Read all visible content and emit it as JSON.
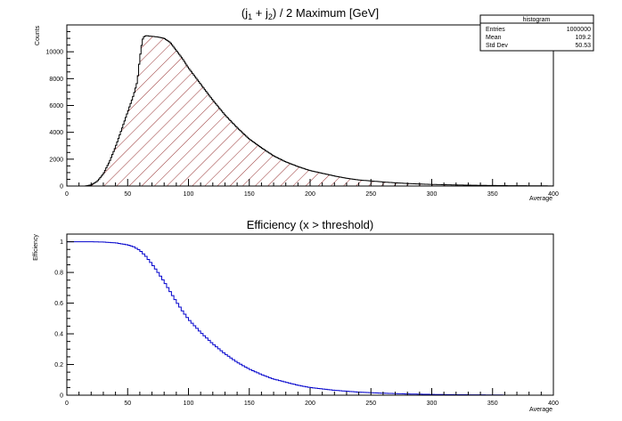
{
  "chart_data": [
    {
      "type": "histogram",
      "title_parts": {
        "open": "(j",
        "sub1": "1",
        "plus": " + j",
        "sub2": "2",
        "close": ") / 2 Maximum [GeV]"
      },
      "xlabel": "Average",
      "ylabel": "Counts",
      "xlim": [
        0,
        400
      ],
      "ylim": [
        0,
        12000
      ],
      "xticks": [
        "0",
        "50",
        "100",
        "150",
        "200",
        "250",
        "300",
        "350",
        "400"
      ],
      "yticks": [
        "0",
        "2000",
        "4000",
        "6000",
        "8000",
        "10000"
      ],
      "line_color": "#000000",
      "fill_hatch_color": "#8b1a1a",
      "stats": {
        "title": "histogram",
        "rows": [
          {
            "label": "Entries",
            "value": "1000000"
          },
          {
            "label": "Mean",
            "value": "109.2"
          },
          {
            "label": "Std Dev",
            "value": "50.53"
          }
        ]
      },
      "series": [
        {
          "x": [
            10,
            15,
            20,
            25,
            30,
            35,
            40,
            45,
            50,
            55,
            58,
            60,
            62,
            63,
            65,
            70,
            75,
            80,
            85,
            90,
            95,
            100,
            105,
            110,
            115,
            120,
            130,
            140,
            150,
            160,
            170,
            180,
            190,
            200,
            210,
            220,
            230,
            240,
            250,
            260,
            270,
            280,
            290,
            300,
            320,
            340,
            360,
            380,
            400
          ],
          "y": [
            0,
            0,
            80,
            350,
            900,
            1800,
            2900,
            4200,
            5500,
            6800,
            7800,
            9500,
            10800,
            11100,
            11200,
            11150,
            11100,
            11000,
            10700,
            10100,
            9500,
            8800,
            8200,
            7600,
            7000,
            6400,
            5300,
            4350,
            3500,
            2850,
            2250,
            1800,
            1450,
            1150,
            950,
            750,
            580,
            450,
            380,
            300,
            240,
            190,
            150,
            120,
            80,
            50,
            30,
            20,
            10
          ]
        }
      ]
    },
    {
      "type": "line",
      "title": "Efficiency (x > threshold)",
      "xlabel": "Average",
      "ylabel": "Efficiency",
      "xlim": [
        0,
        400
      ],
      "ylim": [
        0,
        1.05
      ],
      "xticks": [
        "0",
        "50",
        "100",
        "150",
        "200",
        "250",
        "300",
        "350",
        "400"
      ],
      "yticks": [
        "0",
        "0.2",
        "0.4",
        "0.6",
        "0.8",
        "1"
      ],
      "line_color": "#0000cc",
      "series": [
        {
          "x": [
            0,
            20,
            30,
            40,
            50,
            55,
            60,
            65,
            70,
            75,
            80,
            85,
            90,
            95,
            100,
            110,
            120,
            130,
            140,
            150,
            160,
            170,
            180,
            190,
            200,
            220,
            240,
            260,
            280,
            300,
            320,
            340,
            360
          ],
          "y": [
            1.0,
            1.0,
            0.998,
            0.993,
            0.98,
            0.967,
            0.945,
            0.905,
            0.855,
            0.8,
            0.74,
            0.675,
            0.61,
            0.55,
            0.495,
            0.41,
            0.335,
            0.27,
            0.215,
            0.17,
            0.135,
            0.105,
            0.085,
            0.065,
            0.05,
            0.032,
            0.02,
            0.013,
            0.008,
            0.005,
            0.003,
            0.002,
            0.001
          ]
        }
      ]
    }
  ]
}
